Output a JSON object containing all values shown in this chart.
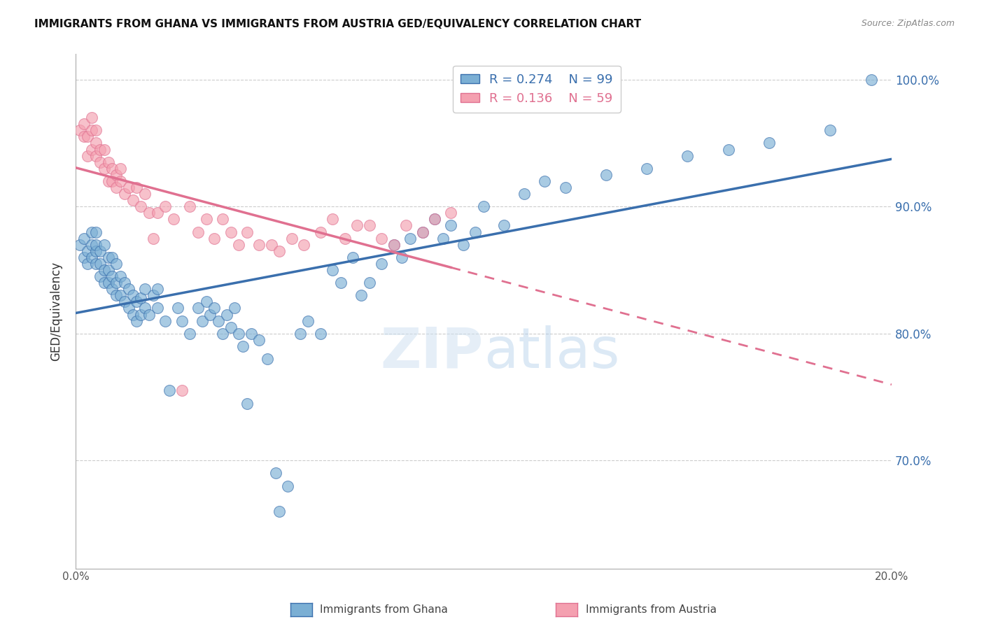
{
  "title": "IMMIGRANTS FROM GHANA VS IMMIGRANTS FROM AUSTRIA GED/EQUIVALENCY CORRELATION CHART",
  "source": "Source: ZipAtlas.com",
  "ylabel": "GED/Equivalency",
  "y_ticks": [
    0.7,
    0.8,
    0.9,
    1.0
  ],
  "y_tick_labels": [
    "70.0%",
    "80.0%",
    "90.0%",
    "100.0%"
  ],
  "x_range": [
    0.0,
    0.2
  ],
  "y_range": [
    0.615,
    1.02
  ],
  "ghana_R": 0.274,
  "ghana_N": 99,
  "austria_R": 0.136,
  "austria_N": 59,
  "ghana_color": "#7bafd4",
  "austria_color": "#f4a0b0",
  "ghana_line_color": "#3a6fad",
  "austria_line_color": "#e07090",
  "watermark_zip": "ZIP",
  "watermark_atlas": "atlas",
  "legend_label_ghana": "Immigrants from Ghana",
  "legend_label_austria": "Immigrants from Austria",
  "ghana_scatter_x": [
    0.001,
    0.002,
    0.002,
    0.003,
    0.003,
    0.004,
    0.004,
    0.004,
    0.005,
    0.005,
    0.005,
    0.005,
    0.006,
    0.006,
    0.006,
    0.007,
    0.007,
    0.007,
    0.008,
    0.008,
    0.008,
    0.009,
    0.009,
    0.009,
    0.01,
    0.01,
    0.01,
    0.011,
    0.011,
    0.012,
    0.012,
    0.013,
    0.013,
    0.014,
    0.014,
    0.015,
    0.015,
    0.016,
    0.016,
    0.017,
    0.017,
    0.018,
    0.019,
    0.02,
    0.02,
    0.022,
    0.023,
    0.025,
    0.026,
    0.028,
    0.03,
    0.031,
    0.032,
    0.033,
    0.034,
    0.035,
    0.036,
    0.037,
    0.038,
    0.039,
    0.04,
    0.041,
    0.042,
    0.043,
    0.045,
    0.047,
    0.049,
    0.05,
    0.052,
    0.055,
    0.057,
    0.06,
    0.063,
    0.065,
    0.068,
    0.07,
    0.072,
    0.075,
    0.078,
    0.08,
    0.082,
    0.085,
    0.088,
    0.09,
    0.092,
    0.095,
    0.098,
    0.1,
    0.105,
    0.11,
    0.115,
    0.12,
    0.13,
    0.14,
    0.15,
    0.16,
    0.17,
    0.185,
    0.195
  ],
  "ghana_scatter_y": [
    0.87,
    0.86,
    0.875,
    0.855,
    0.865,
    0.86,
    0.87,
    0.88,
    0.855,
    0.865,
    0.87,
    0.88,
    0.845,
    0.855,
    0.865,
    0.84,
    0.85,
    0.87,
    0.84,
    0.85,
    0.86,
    0.835,
    0.845,
    0.86,
    0.83,
    0.84,
    0.855,
    0.83,
    0.845,
    0.825,
    0.84,
    0.82,
    0.835,
    0.815,
    0.83,
    0.81,
    0.825,
    0.815,
    0.828,
    0.82,
    0.835,
    0.815,
    0.83,
    0.82,
    0.835,
    0.81,
    0.755,
    0.82,
    0.81,
    0.8,
    0.82,
    0.81,
    0.825,
    0.815,
    0.82,
    0.81,
    0.8,
    0.815,
    0.805,
    0.82,
    0.8,
    0.79,
    0.745,
    0.8,
    0.795,
    0.78,
    0.69,
    0.66,
    0.68,
    0.8,
    0.81,
    0.8,
    0.85,
    0.84,
    0.86,
    0.83,
    0.84,
    0.855,
    0.87,
    0.86,
    0.875,
    0.88,
    0.89,
    0.875,
    0.885,
    0.87,
    0.88,
    0.9,
    0.885,
    0.91,
    0.92,
    0.915,
    0.925,
    0.93,
    0.94,
    0.945,
    0.95,
    0.96,
    1.0
  ],
  "austria_scatter_x": [
    0.001,
    0.002,
    0.002,
    0.003,
    0.003,
    0.004,
    0.004,
    0.004,
    0.005,
    0.005,
    0.005,
    0.006,
    0.006,
    0.007,
    0.007,
    0.008,
    0.008,
    0.009,
    0.009,
    0.01,
    0.01,
    0.011,
    0.011,
    0.012,
    0.013,
    0.014,
    0.015,
    0.016,
    0.017,
    0.018,
    0.019,
    0.02,
    0.022,
    0.024,
    0.026,
    0.028,
    0.03,
    0.032,
    0.034,
    0.036,
    0.038,
    0.04,
    0.042,
    0.045,
    0.048,
    0.05,
    0.053,
    0.056,
    0.06,
    0.063,
    0.066,
    0.069,
    0.072,
    0.075,
    0.078,
    0.081,
    0.085,
    0.088,
    0.092
  ],
  "austria_scatter_y": [
    0.96,
    0.955,
    0.965,
    0.94,
    0.955,
    0.945,
    0.96,
    0.97,
    0.94,
    0.95,
    0.96,
    0.935,
    0.945,
    0.93,
    0.945,
    0.92,
    0.935,
    0.92,
    0.93,
    0.915,
    0.925,
    0.92,
    0.93,
    0.91,
    0.915,
    0.905,
    0.915,
    0.9,
    0.91,
    0.895,
    0.875,
    0.895,
    0.9,
    0.89,
    0.755,
    0.9,
    0.88,
    0.89,
    0.875,
    0.89,
    0.88,
    0.87,
    0.88,
    0.87,
    0.87,
    0.865,
    0.875,
    0.87,
    0.88,
    0.89,
    0.875,
    0.885,
    0.885,
    0.875,
    0.87,
    0.885,
    0.88,
    0.89,
    0.895
  ]
}
